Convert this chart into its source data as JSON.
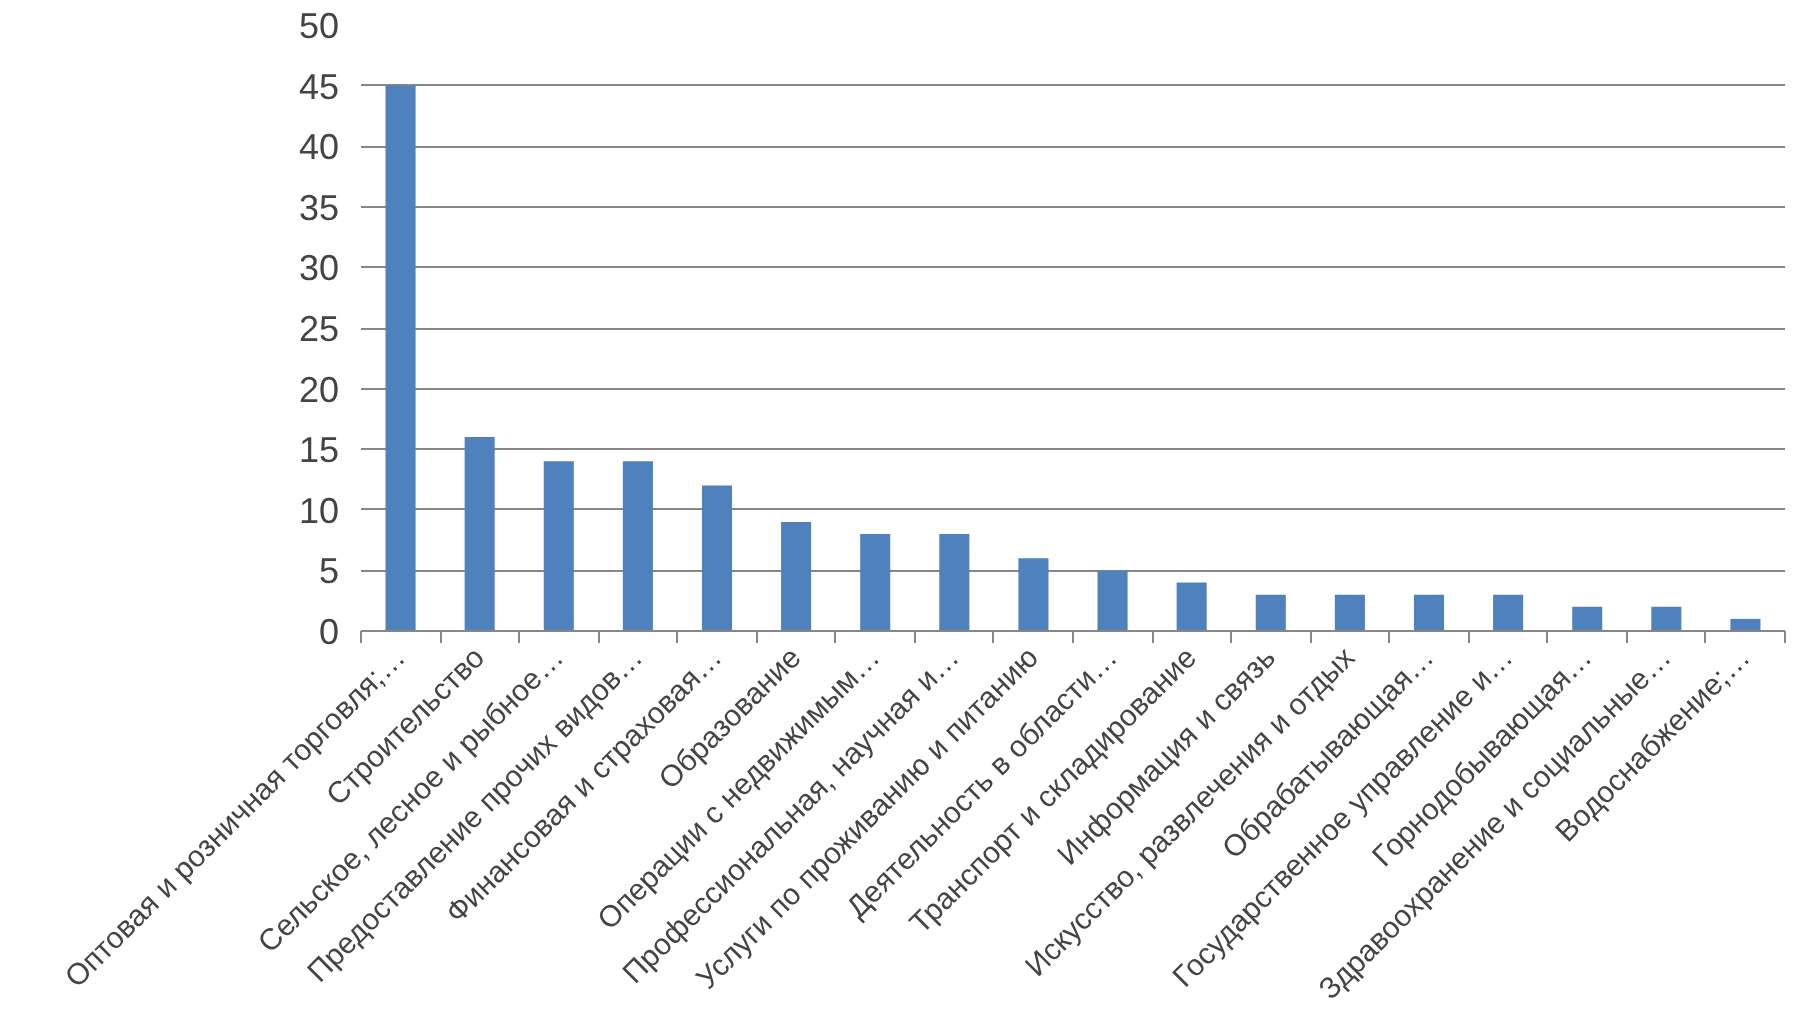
{
  "chart_data": {
    "type": "bar",
    "categories": [
      "Оптовая и розничная торговля;…",
      "Строительство",
      "Сельское, лесное и рыбное…",
      "Предоставление прочих видов…",
      "Финансовая и страховая…",
      "Образование",
      "Операции с недвижимым…",
      "Профессиональная, научная и…",
      "Услуги по проживанию и питанию",
      "Деятельность в области…",
      "Транспорт и складирование",
      "Информация и связь",
      "Искусство, развлечения и отдых",
      "Обрабатывающая…",
      "Государственное управление и…",
      "Горнодобывающая…",
      "Здравоохранение и социальные…",
      "Водоснабжение;…"
    ],
    "values": [
      45,
      16,
      14,
      14,
      12,
      9,
      8,
      8,
      6,
      5,
      4,
      3,
      3,
      3,
      3,
      2,
      2,
      1
    ],
    "color": "#4f81bd",
    "ylim": [
      0,
      50
    ],
    "yticks": [
      0,
      5,
      10,
      15,
      20,
      25,
      30,
      35,
      40,
      45,
      50
    ],
    "grid": "y"
  }
}
